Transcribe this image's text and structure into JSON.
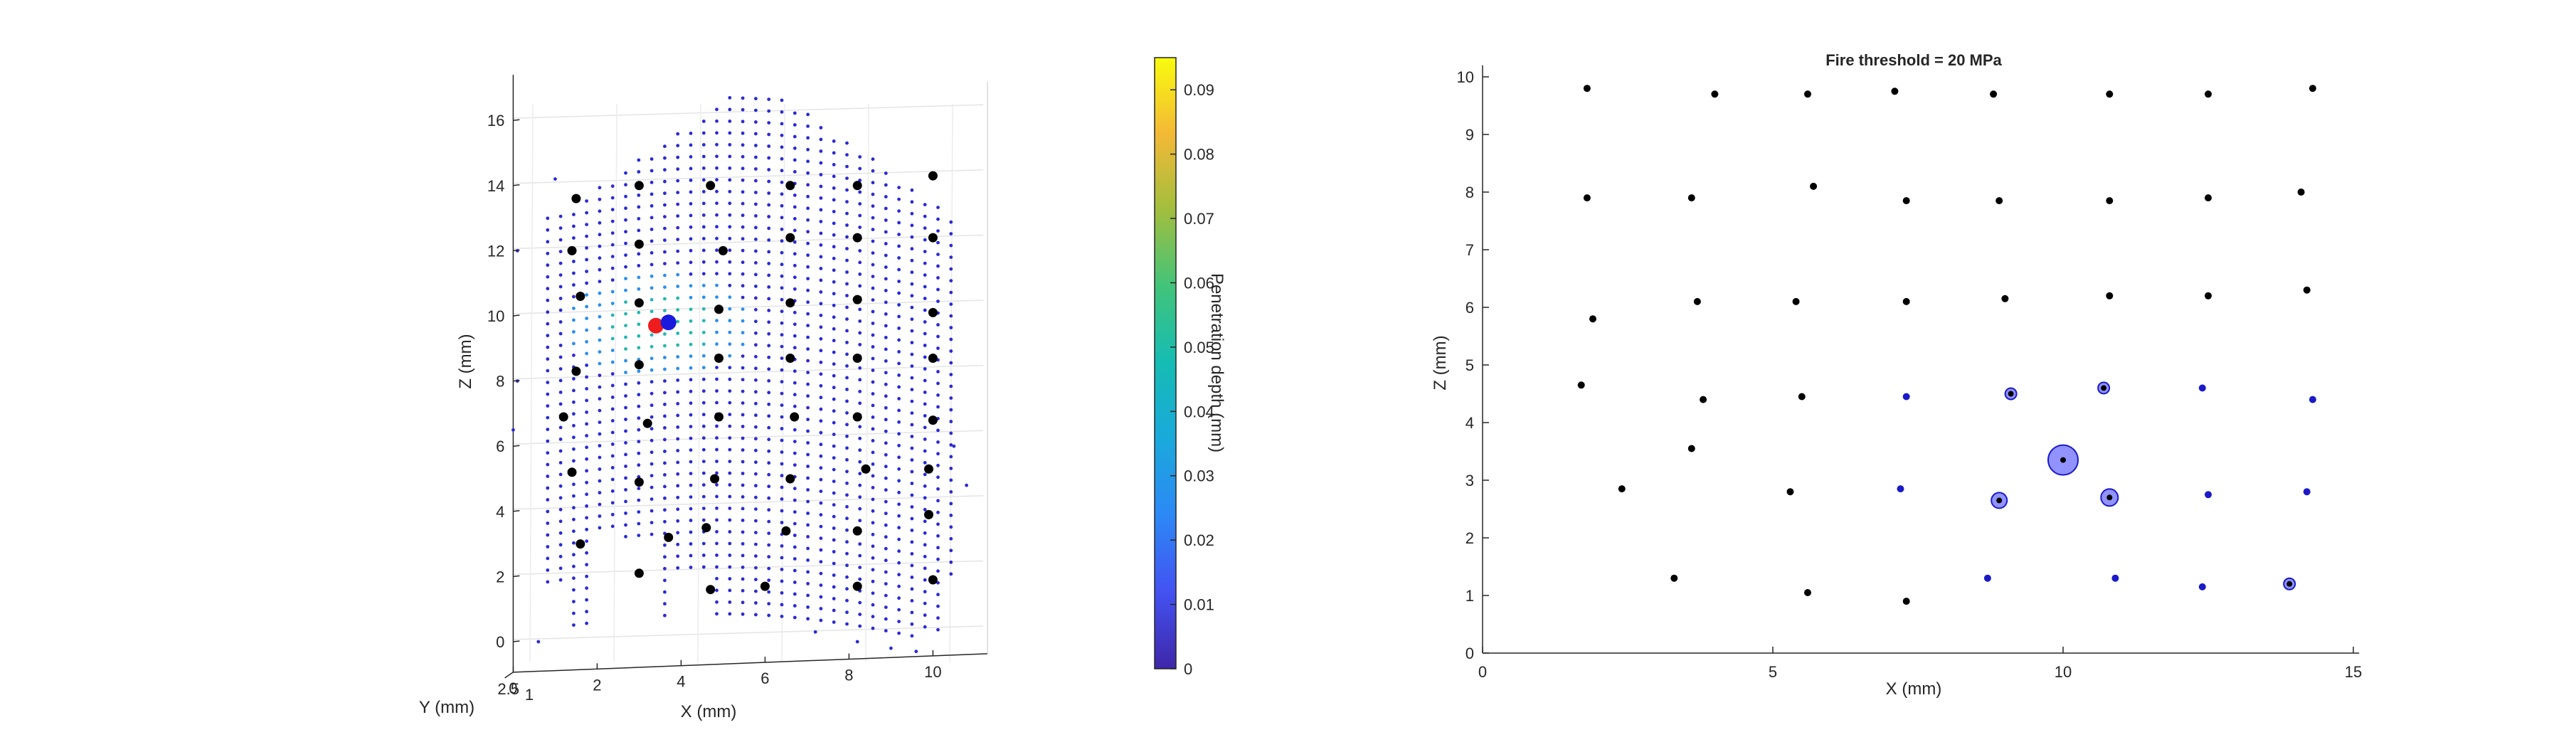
{
  "figure": "two-panel MATLAB figure",
  "chart_data": [
    {
      "type": "scatter",
      "panel": "left-3d",
      "xlabel": "X (mm)",
      "ylabel": "Y (mm)",
      "zlabel": "Z (mm)",
      "xticks": [
        "0",
        "2",
        "4",
        "6",
        "8",
        "10"
      ],
      "yticks": [
        "2.5",
        "1"
      ],
      "zticks": [
        "0",
        "2",
        "4",
        "6",
        "8",
        "10",
        "12",
        "14",
        "16"
      ],
      "xlim": [
        0,
        11
      ],
      "zlim": [
        -0.5,
        17
      ],
      "grid": true,
      "sample_grid_color": "#2a2ad8",
      "electrodes": [
        [
          1.1,
          13.6
        ],
        [
          2.6,
          14.0
        ],
        [
          4.3,
          14.0
        ],
        [
          6.2,
          14.0
        ],
        [
          7.8,
          14.0
        ],
        [
          9.6,
          14.3
        ],
        [
          1.0,
          12.0
        ],
        [
          2.6,
          12.2
        ],
        [
          4.6,
          12.0
        ],
        [
          6.2,
          12.4
        ],
        [
          7.8,
          12.4
        ],
        [
          9.6,
          12.4
        ],
        [
          1.2,
          10.6
        ],
        [
          2.6,
          10.4
        ],
        [
          4.5,
          10.2
        ],
        [
          6.2,
          10.4
        ],
        [
          7.8,
          10.5
        ],
        [
          9.6,
          10.1
        ],
        [
          1.1,
          8.3
        ],
        [
          2.6,
          8.5
        ],
        [
          4.5,
          8.7
        ],
        [
          6.2,
          8.7
        ],
        [
          7.8,
          8.7
        ],
        [
          9.6,
          8.7
        ],
        [
          0.8,
          6.9
        ],
        [
          2.8,
          6.7
        ],
        [
          4.5,
          6.9
        ],
        [
          6.3,
          6.9
        ],
        [
          7.8,
          6.9
        ],
        [
          9.6,
          6.8
        ],
        [
          1.0,
          5.2
        ],
        [
          2.6,
          4.9
        ],
        [
          4.4,
          5.0
        ],
        [
          6.2,
          5.0
        ],
        [
          8.0,
          5.3
        ],
        [
          9.5,
          5.3
        ],
        [
          1.2,
          3.0
        ],
        [
          3.3,
          3.2
        ],
        [
          4.2,
          3.5
        ],
        [
          6.1,
          3.4
        ],
        [
          7.8,
          3.4
        ],
        [
          9.5,
          3.9
        ],
        [
          2.6,
          2.1
        ],
        [
          4.3,
          1.6
        ],
        [
          5.6,
          1.7
        ],
        [
          7.8,
          1.7
        ],
        [
          9.6,
          1.9
        ]
      ],
      "stim_red": [
        3.0,
        9.7
      ],
      "stim_blue": [
        3.3,
        9.8
      ],
      "colorbar": {
        "label": "Penetration depth (mm)",
        "ticks": [
          "0",
          "0.01",
          "0.02",
          "0.03",
          "0.04",
          "0.05",
          "0.06",
          "0.07",
          "0.08",
          "0.09"
        ],
        "range": [
          0,
          0.095
        ],
        "colormap": "parula"
      }
    },
    {
      "type": "scatter",
      "panel": "right-2d",
      "title": "Fire threshold = 20 MPa",
      "xlabel": "X (mm)",
      "ylabel": "Z (mm)",
      "xlim": [
        0,
        15
      ],
      "ylim": [
        0,
        10.2
      ],
      "xticks": [
        "0",
        "5",
        "10",
        "15"
      ],
      "yticks": [
        "0",
        "1",
        "2",
        "3",
        "4",
        "5",
        "6",
        "7",
        "8",
        "9",
        "10"
      ],
      "points": [
        {
          "x": 1.8,
          "y": 9.8,
          "fired": false,
          "r": 0
        },
        {
          "x": 4.0,
          "y": 9.7,
          "fired": false,
          "r": 0
        },
        {
          "x": 5.6,
          "y": 9.7,
          "fired": false,
          "r": 0
        },
        {
          "x": 7.1,
          "y": 9.75,
          "fired": false,
          "r": 0
        },
        {
          "x": 8.8,
          "y": 9.7,
          "fired": false,
          "r": 0
        },
        {
          "x": 10.8,
          "y": 9.7,
          "fired": false,
          "r": 0
        },
        {
          "x": 12.5,
          "y": 9.7,
          "fired": false,
          "r": 0
        },
        {
          "x": 14.3,
          "y": 9.8,
          "fired": false,
          "r": 0
        },
        {
          "x": 1.8,
          "y": 7.9,
          "fired": false,
          "r": 0
        },
        {
          "x": 3.6,
          "y": 7.9,
          "fired": false,
          "r": 0
        },
        {
          "x": 5.7,
          "y": 8.1,
          "fired": false,
          "r": 0
        },
        {
          "x": 7.3,
          "y": 7.85,
          "fired": false,
          "r": 0
        },
        {
          "x": 8.9,
          "y": 7.85,
          "fired": false,
          "r": 0
        },
        {
          "x": 10.8,
          "y": 7.85,
          "fired": false,
          "r": 0
        },
        {
          "x": 12.5,
          "y": 7.9,
          "fired": false,
          "r": 0
        },
        {
          "x": 14.1,
          "y": 8.0,
          "fired": false,
          "r": 0
        },
        {
          "x": 1.9,
          "y": 5.8,
          "fired": false,
          "r": 0
        },
        {
          "x": 3.7,
          "y": 6.1,
          "fired": false,
          "r": 0
        },
        {
          "x": 5.4,
          "y": 6.1,
          "fired": false,
          "r": 0
        },
        {
          "x": 7.3,
          "y": 6.1,
          "fired": false,
          "r": 0
        },
        {
          "x": 9.0,
          "y": 6.15,
          "fired": false,
          "r": 0
        },
        {
          "x": 10.8,
          "y": 6.2,
          "fired": false,
          "r": 0
        },
        {
          "x": 12.5,
          "y": 6.2,
          "fired": false,
          "r": 0
        },
        {
          "x": 14.2,
          "y": 6.3,
          "fired": false,
          "r": 0
        },
        {
          "x": 1.7,
          "y": 4.65,
          "fired": false,
          "r": 0
        },
        {
          "x": 3.8,
          "y": 4.4,
          "fired": false,
          "r": 0
        },
        {
          "x": 5.5,
          "y": 4.45,
          "fired": false,
          "r": 0
        },
        {
          "x": 7.3,
          "y": 4.45,
          "fired": true,
          "r": 0
        },
        {
          "x": 9.1,
          "y": 4.5,
          "fired": true,
          "r": 5
        },
        {
          "x": 10.7,
          "y": 4.6,
          "fired": true,
          "r": 5
        },
        {
          "x": 12.4,
          "y": 4.6,
          "fired": true,
          "r": 0
        },
        {
          "x": 14.3,
          "y": 4.4,
          "fired": true,
          "r": 0
        },
        {
          "x": 3.6,
          "y": 3.55,
          "fired": false,
          "r": 0
        },
        {
          "x": 10.0,
          "y": 3.35,
          "fired": true,
          "r": 18
        },
        {
          "x": 2.4,
          "y": 2.85,
          "fired": false,
          "r": 0
        },
        {
          "x": 5.3,
          "y": 2.8,
          "fired": false,
          "r": 0
        },
        {
          "x": 7.2,
          "y": 2.85,
          "fired": true,
          "r": 0
        },
        {
          "x": 8.9,
          "y": 2.65,
          "fired": true,
          "r": 8
        },
        {
          "x": 10.8,
          "y": 2.7,
          "fired": true,
          "r": 9
        },
        {
          "x": 12.5,
          "y": 2.75,
          "fired": true,
          "r": 0
        },
        {
          "x": 14.2,
          "y": 2.8,
          "fired": true,
          "r": 0
        },
        {
          "x": 3.3,
          "y": 1.3,
          "fired": false,
          "r": 0
        },
        {
          "x": 5.6,
          "y": 1.05,
          "fired": false,
          "r": 0
        },
        {
          "x": 7.3,
          "y": 0.9,
          "fired": false,
          "r": 0
        },
        {
          "x": 8.7,
          "y": 1.3,
          "fired": true,
          "r": 0
        },
        {
          "x": 10.9,
          "y": 1.3,
          "fired": true,
          "r": 0
        },
        {
          "x": 12.4,
          "y": 1.15,
          "fired": true,
          "r": 0
        },
        {
          "x": 13.9,
          "y": 1.2,
          "fired": true,
          "r": 5
        }
      ],
      "fired_color": "#1a1ac8",
      "halo_color": "#7f7fff"
    }
  ]
}
